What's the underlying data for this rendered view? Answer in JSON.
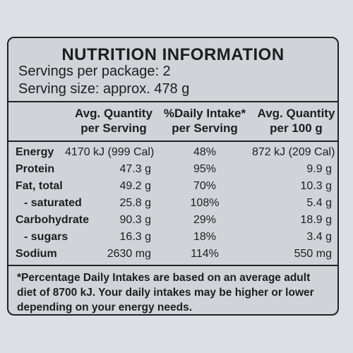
{
  "title": "NUTRITION INFORMATION",
  "servings_per_package": "Servings per package: 2",
  "serving_size": "Serving size: approx. 478 g",
  "headers": {
    "col1": [
      "Avg. Quantity",
      "per Serving"
    ],
    "col2": [
      "%Daily Intake*",
      "per Serving"
    ],
    "col3": [
      "Avg. Quantity",
      "per 100 g"
    ]
  },
  "rows": [
    {
      "label": "Energy",
      "per_serving": "4170 kJ (999 Cal)",
      "daily_intake": "48%",
      "per_100g": "872 kJ (209 Cal)"
    },
    {
      "label": "Protein",
      "per_serving": "47.3 g",
      "daily_intake": "95%",
      "per_100g": "9.9 g"
    },
    {
      "label": "Fat, total",
      "per_serving": "49.2 g",
      "daily_intake": "70%",
      "per_100g": "10.3 g"
    },
    {
      "label": "- saturated",
      "per_serving": "25.8 g",
      "daily_intake": "108%",
      "per_100g": "5.4 g"
    },
    {
      "label": "Carbohydrate",
      "per_serving": "90.3 g",
      "daily_intake": "29%",
      "per_100g": "18.9 g"
    },
    {
      "label": "- sugars",
      "per_serving": "16.3 g",
      "daily_intake": "18%",
      "per_100g": "3.4 g"
    },
    {
      "label": "Sodium",
      "per_serving": "2630 mg",
      "daily_intake": "114%",
      "per_100g": "550 mg"
    }
  ],
  "footnote": "*Percentage Daily Intakes are based on an average adult diet of 8700 kJ. Your daily intakes may be higher or lower depending on your energy needs."
}
